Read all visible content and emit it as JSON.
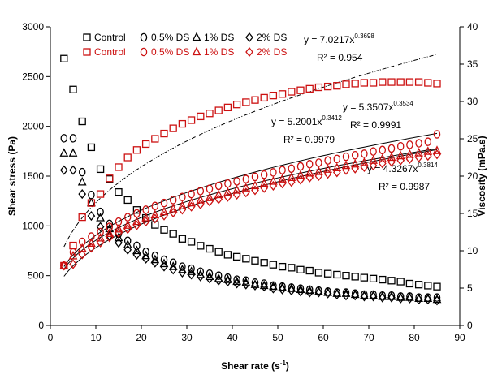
{
  "chart_data": {
    "type": "scatter",
    "xlabel": "Shear rate (s",
    "xlabel_sup": "-1",
    "xlabel_close": ")",
    "ylabel": "Shear stress (Pa)",
    "y2label": "Viscosity (mPa.s)",
    "xlim": [
      0,
      90
    ],
    "ylim": [
      0,
      3000
    ],
    "y2lim": [
      0,
      40
    ],
    "x_ticks": [
      "0",
      "10",
      "20",
      "30",
      "40",
      "50",
      "60",
      "70",
      "80",
      "90"
    ],
    "y_ticks": [
      "0",
      "500",
      "1000",
      "1500",
      "2000",
      "2500",
      "3000"
    ],
    "y2_ticks": [
      "0",
      "5",
      "10",
      "15",
      "20",
      "25",
      "30",
      "35",
      "40"
    ],
    "grid": false,
    "legend_position": "top",
    "colors": {
      "stress": "#000000",
      "viscosity": "#cc1111",
      "fit": "#000000"
    },
    "x": [
      3,
      5,
      7,
      9,
      11,
      13,
      15,
      17,
      19,
      21,
      23,
      25,
      27,
      29,
      31,
      33,
      35,
      37,
      39,
      41,
      43,
      45,
      47,
      49,
      51,
      53,
      55,
      57,
      59,
      61,
      63,
      65,
      67,
      69,
      71,
      73,
      75,
      77,
      79,
      81,
      83,
      85
    ],
    "viscosity_series": [
      {
        "name": "Control",
        "axis": "y2",
        "marker": "square",
        "values": [
          8.0,
          10.7,
          14.5,
          16.4,
          17.6,
          19.7,
          21.2,
          22.5,
          23.5,
          24.3,
          25.0,
          25.7,
          26.4,
          27.0,
          27.5,
          28.0,
          28.4,
          28.8,
          29.2,
          29.6,
          29.9,
          30.2,
          30.5,
          30.8,
          31.0,
          31.3,
          31.5,
          31.7,
          31.9,
          32.0,
          32.1,
          32.3,
          32.4,
          32.5,
          32.5,
          32.6,
          32.6,
          32.6,
          32.6,
          32.6,
          32.5,
          32.4
        ]
      },
      {
        "name": "0.5% DS",
        "axis": "y2",
        "marker": "circle",
        "values": [
          8.0,
          9.8,
          11.2,
          11.9,
          12.5,
          13.2,
          13.9,
          14.5,
          15.0,
          15.5,
          16.0,
          16.4,
          16.8,
          17.2,
          17.6,
          18.0,
          18.3,
          18.7,
          19.0,
          19.3,
          19.6,
          19.9,
          20.2,
          20.5,
          20.8,
          21.0,
          21.3,
          21.6,
          21.8,
          22.1,
          22.3,
          22.6,
          22.8,
          23.0,
          23.3,
          23.5,
          23.7,
          24.0,
          24.2,
          24.4,
          24.6,
          25.6
        ]
      },
      {
        "name": "1% DS",
        "axis": "y2",
        "marker": "triangle",
        "values": [
          8.0,
          9.3,
          10.3,
          11.0,
          11.7,
          12.3,
          12.9,
          13.4,
          13.9,
          14.4,
          14.8,
          15.2,
          15.6,
          16.0,
          16.4,
          16.8,
          17.1,
          17.5,
          17.8,
          18.1,
          18.4,
          18.7,
          19.0,
          19.3,
          19.6,
          19.8,
          20.1,
          20.4,
          20.6,
          20.9,
          21.1,
          21.4,
          21.6,
          21.8,
          22.1,
          22.3,
          22.5,
          22.7,
          22.9,
          23.1,
          23.3,
          23.4
        ]
      },
      {
        "name": "2% DS",
        "axis": "y2",
        "marker": "diamond",
        "values": [
          8.0,
          8.2,
          9.5,
          10.4,
          11.1,
          11.8,
          12.4,
          12.9,
          13.4,
          13.9,
          14.3,
          14.7,
          15.1,
          15.5,
          15.9,
          16.2,
          16.6,
          16.9,
          17.2,
          17.5,
          17.8,
          18.1,
          18.4,
          18.7,
          19.0,
          19.2,
          19.5,
          19.8,
          20.0,
          20.3,
          20.5,
          20.8,
          21.0,
          21.2,
          21.4,
          21.7,
          21.9,
          22.1,
          22.3,
          22.5,
          22.7,
          22.9
        ]
      }
    ],
    "stress_series": [
      {
        "name": "Control",
        "axis": "y",
        "marker": "square",
        "values": [
          2680,
          2370,
          2050,
          1790,
          1570,
          1470,
          1340,
          1260,
          1160,
          1080,
          1010,
          960,
          920,
          870,
          840,
          800,
          770,
          740,
          710,
          690,
          670,
          650,
          630,
          610,
          590,
          580,
          560,
          550,
          530,
          520,
          510,
          500,
          490,
          480,
          470,
          460,
          450,
          440,
          420,
          410,
          400,
          390
        ]
      },
      {
        "name": "0.5% DS",
        "axis": "y",
        "marker": "circle",
        "values": [
          1880,
          1880,
          1540,
          1310,
          1140,
          1020,
          920,
          850,
          800,
          740,
          700,
          660,
          630,
          590,
          570,
          540,
          520,
          500,
          480,
          460,
          450,
          430,
          420,
          400,
          390,
          380,
          370,
          360,
          350,
          340,
          330,
          330,
          320,
          310,
          310,
          300,
          300,
          290,
          290,
          280,
          280,
          280
        ]
      },
      {
        "name": "1% DS",
        "axis": "y",
        "marker": "triangle",
        "values": [
          1730,
          1730,
          1440,
          1230,
          1080,
          970,
          880,
          810,
          750,
          700,
          660,
          620,
          590,
          560,
          540,
          510,
          490,
          470,
          460,
          440,
          430,
          410,
          400,
          390,
          380,
          370,
          360,
          350,
          340,
          330,
          320,
          320,
          310,
          300,
          300,
          290,
          290,
          280,
          280,
          270,
          270,
          260
        ]
      },
      {
        "name": "2% DS",
        "axis": "y",
        "marker": "diamond",
        "values": [
          1560,
          1560,
          1320,
          1100,
          990,
          900,
          830,
          760,
          710,
          670,
          630,
          590,
          560,
          530,
          510,
          490,
          470,
          450,
          440,
          420,
          410,
          400,
          390,
          370,
          360,
          350,
          340,
          330,
          330,
          320,
          310,
          300,
          300,
          290,
          290,
          280,
          280,
          270,
          270,
          260,
          260,
          250
        ]
      }
    ],
    "fits": [
      {
        "a": 7.0217,
        "b": 0.3698,
        "label": "y = 7.0217x",
        "exp": "0.3698",
        "r2": "R² = 0.954"
      },
      {
        "a": 5.3507,
        "b": 0.3534,
        "label": "y = 5.3507x",
        "exp": "0.3534",
        "r2": "R² = 0.9991"
      },
      {
        "a": 5.2001,
        "b": 0.3412,
        "label": "y = 5.2001x",
        "exp": "0.3412",
        "r2": "R² = 0.9979"
      },
      {
        "a": 4.3267,
        "b": 0.3814,
        "label": "y = 4.3267x",
        "exp": "0.3814",
        "r2": "R² = 0.9987"
      }
    ],
    "legend": {
      "row1": [
        "Control",
        "0.5% DS",
        "1% DS",
        "2% DS"
      ],
      "row2": [
        "Control",
        "0.5% DS",
        "1% DS",
        "2% DS"
      ]
    }
  }
}
